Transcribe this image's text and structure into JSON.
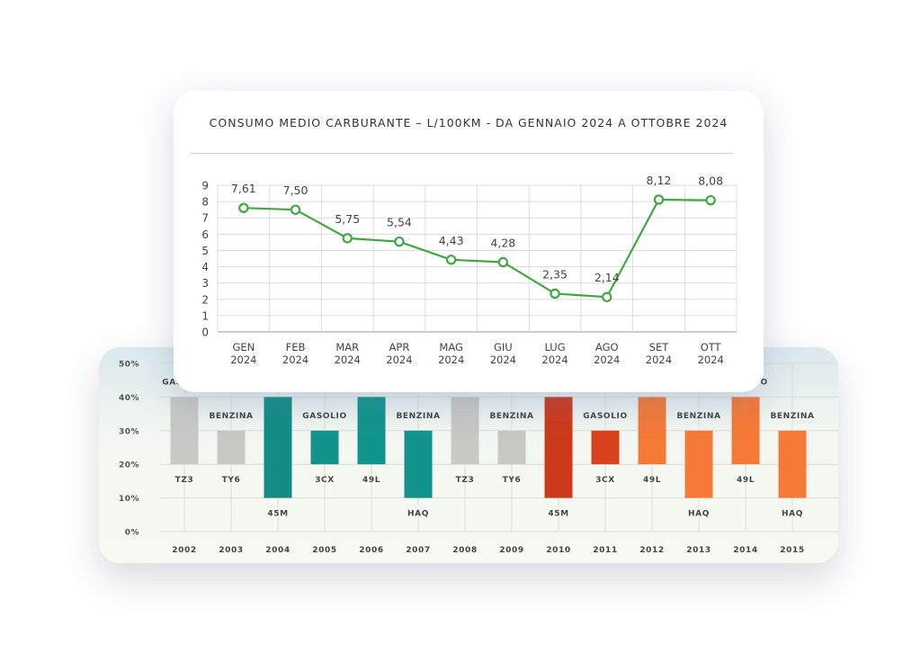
{
  "chart_data": [
    {
      "type": "line",
      "title": "CONSUMO MEDIO CARBURANTE – L/100KM - DA GENNAIO 2024 A OTTOBRE 2024",
      "categories": [
        [
          "GEN",
          "2024"
        ],
        [
          "FEB",
          "2024"
        ],
        [
          "MAR",
          "2024"
        ],
        [
          "APR",
          "2024"
        ],
        [
          "MAG",
          "2024"
        ],
        [
          "GIU",
          "2024"
        ],
        [
          "LUG",
          "2024"
        ],
        [
          "AGO",
          "2024"
        ],
        [
          "SET",
          "2024"
        ],
        [
          "OTT",
          "2024"
        ]
      ],
      "values": [
        7.61,
        7.5,
        5.75,
        5.54,
        4.43,
        4.28,
        2.35,
        2.14,
        8.12,
        8.08
      ],
      "value_labels": [
        "7,61",
        "7,50",
        "5,75",
        "5,54",
        "4,43",
        "4,28",
        "2,35",
        "2,14",
        "8,12",
        "8,08"
      ],
      "y_ticks": [
        "0",
        "1",
        "2",
        "3",
        "4",
        "5",
        "6",
        "7",
        "8",
        "9"
      ],
      "ylim": [
        0,
        9
      ],
      "grid": true,
      "line_color": "#3fa843"
    },
    {
      "type": "bar",
      "categories": [
        "2002",
        "2003",
        "2004",
        "2005",
        "2006",
        "2007",
        "2008",
        "2009",
        "2010",
        "2011",
        "2012",
        "2013",
        "2014",
        "2015"
      ],
      "ranges": [
        [
          20,
          40
        ],
        [
          20,
          30
        ],
        [
          10,
          40
        ],
        [
          20,
          30
        ],
        [
          20,
          40
        ],
        [
          10,
          30
        ],
        [
          20,
          40
        ],
        [
          20,
          30
        ],
        [
          10,
          40
        ],
        [
          20,
          30
        ],
        [
          20,
          40
        ],
        [
          10,
          30
        ],
        [
          20,
          40
        ],
        [
          10,
          30
        ]
      ],
      "top_labels": [
        "GASOLIO",
        "BENZINA",
        "",
        "GASOLIO",
        "",
        "BENZINA",
        "",
        "BENZINA",
        "",
        "GASOLIO",
        "",
        "BENZINA",
        "GASOLIO",
        "BENZINA"
      ],
      "bottom_labels": [
        "TZ3",
        "TY6",
        "45M",
        "3CX",
        "49L",
        "HAQ",
        "TZ3",
        "TY6",
        "45M",
        "3CX",
        "49L",
        "HAQ",
        "49L",
        "HAQ"
      ],
      "colors": [
        "#c8c8c5",
        "#c8c8c5",
        "#128c84",
        "#12948c",
        "#12948c",
        "#12948c",
        "#c8c8c5",
        "#c8c8c5",
        "#cd3a1b",
        "#d9421f",
        "#f57a37",
        "#f57a37",
        "#f57a37",
        "#f57a37"
      ],
      "y_ticks": [
        "0%",
        "10%",
        "20%",
        "30%",
        "40%",
        "50%"
      ],
      "ylim": [
        0,
        50
      ],
      "grid": true
    }
  ]
}
